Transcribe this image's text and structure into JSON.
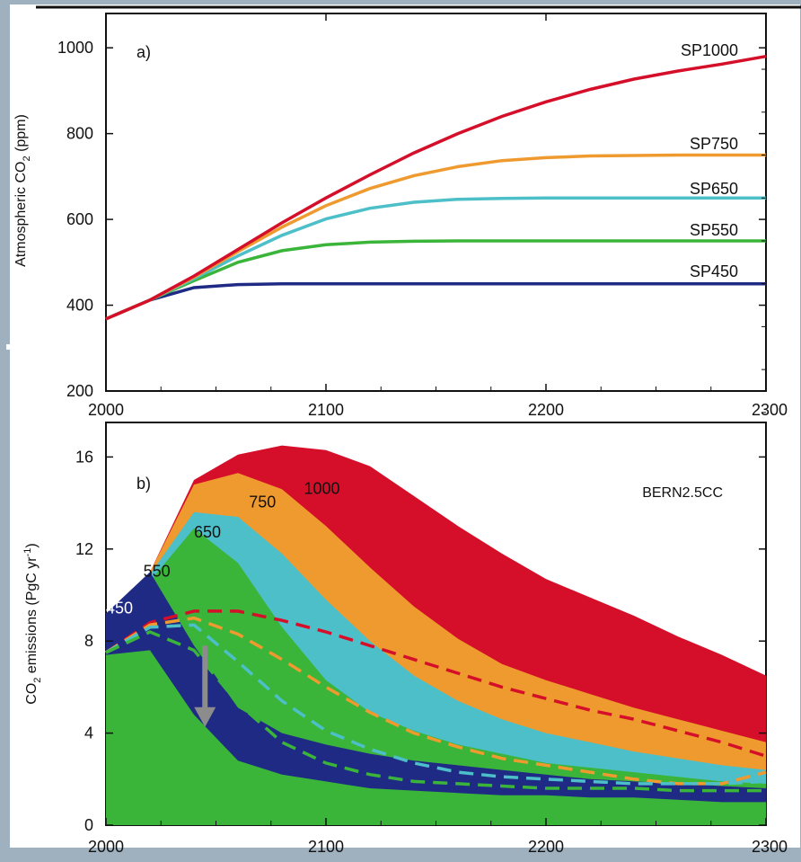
{
  "colors": {
    "background": "#9fb0bf",
    "panel": "#ffffff",
    "frame": "#111111",
    "sp1000": "#d50f2a",
    "sp750": "#ef9a2f",
    "sp650": "#4dbfc9",
    "sp550": "#3ab53a",
    "sp450": "#1f2a84",
    "arrow": "#8c8c8c"
  },
  "chart_data": [
    {
      "type": "line",
      "panel_label": "a)",
      "xlabel": "",
      "ylabel": "Atmospheric CO2 (ppm)",
      "xlim": [
        2000,
        2300
      ],
      "ylim": [
        200,
        1080
      ],
      "xticks": [
        2000,
        2100,
        2200,
        2300
      ],
      "yticks": [
        200,
        400,
        600,
        800,
        1000
      ],
      "grid": false,
      "x": [
        2000,
        2020,
        2040,
        2060,
        2080,
        2100,
        2120,
        2140,
        2160,
        2180,
        2200,
        2220,
        2240,
        2260,
        2280,
        2300
      ],
      "series": [
        {
          "name": "SP1000",
          "color": "#d50f2a",
          "values": [
            368,
            412,
            468,
            530,
            592,
            650,
            704,
            755,
            800,
            840,
            874,
            903,
            927,
            946,
            962,
            980
          ]
        },
        {
          "name": "SP750",
          "color": "#ef9a2f",
          "values": [
            368,
            412,
            465,
            525,
            582,
            632,
            672,
            702,
            723,
            737,
            744,
            748,
            749,
            750,
            750,
            750
          ]
        },
        {
          "name": "SP650",
          "color": "#4dbfc9",
          "values": [
            368,
            412,
            462,
            515,
            563,
            601,
            626,
            640,
            647,
            649,
            650,
            650,
            650,
            650,
            650,
            650
          ]
        },
        {
          "name": "SP550",
          "color": "#3ab53a",
          "values": [
            368,
            412,
            457,
            500,
            527,
            541,
            547,
            549,
            550,
            550,
            550,
            550,
            550,
            550,
            550,
            550
          ]
        },
        {
          "name": "SP450",
          "color": "#1f2a84",
          "values": [
            368,
            412,
            441,
            448,
            450,
            450,
            450,
            450,
            450,
            450,
            450,
            450,
            450,
            450,
            450,
            450
          ]
        }
      ]
    },
    {
      "type": "area",
      "panel_label": "b)",
      "model_label": "BERN2.5CC",
      "xlabel": "",
      "ylabel": "CO2 emissions (PgC yr-1)",
      "xlim": [
        2000,
        2300
      ],
      "ylim": [
        0,
        17.5
      ],
      "xticks": [
        2000,
        2100,
        2200,
        2300
      ],
      "yticks": [
        0,
        4,
        8,
        12,
        16
      ],
      "grid": false,
      "x": [
        2000,
        2020,
        2040,
        2060,
        2080,
        2100,
        2120,
        2140,
        2160,
        2180,
        2200,
        2220,
        2240,
        2260,
        2280,
        2300
      ],
      "bands": [
        {
          "name": "1000",
          "color": "#d50f2a",
          "upper": [
            7.6,
            11.0,
            15.0,
            16.1,
            16.5,
            16.3,
            15.6,
            14.3,
            13.0,
            11.8,
            10.7,
            9.9,
            9.1,
            8.2,
            7.4,
            6.5
          ]
        },
        {
          "name": "750",
          "color": "#ef9a2f",
          "upper": [
            7.6,
            11.0,
            14.8,
            15.3,
            14.6,
            13.0,
            11.2,
            9.5,
            8.1,
            7.0,
            6.3,
            5.7,
            5.1,
            4.6,
            4.1,
            3.6
          ]
        },
        {
          "name": "650",
          "color": "#4dbfc9",
          "upper": [
            7.6,
            10.9,
            13.6,
            13.4,
            11.8,
            9.8,
            8.0,
            6.5,
            5.4,
            4.6,
            4.0,
            3.6,
            3.2,
            2.9,
            2.6,
            2.4
          ]
        },
        {
          "name": "550",
          "color": "#3ab53a",
          "upper": [
            7.6,
            10.6,
            12.9,
            11.4,
            8.6,
            6.3,
            4.9,
            4.1,
            3.5,
            3.1,
            2.7,
            2.5,
            2.3,
            2.1,
            1.9,
            1.8
          ]
        },
        {
          "name": "450",
          "color": "#1f2a84",
          "upper": [
            9.2,
            11.0,
            7.8,
            5.1,
            4.0,
            3.5,
            3.1,
            2.8,
            2.6,
            2.4,
            2.2,
            2.0,
            1.9,
            1.8,
            1.7,
            1.6
          ],
          "lower": [
            7.4,
            7.6,
            4.8,
            2.8,
            2.2,
            1.9,
            1.6,
            1.5,
            1.4,
            1.3,
            1.3,
            1.2,
            1.2,
            1.1,
            1.0,
            1.0
          ]
        }
      ],
      "dashed_series": [
        {
          "color": "#d50f2a",
          "values": [
            7.5,
            8.8,
            9.3,
            9.3,
            8.9,
            8.4,
            7.8,
            7.2,
            6.6,
            6.0,
            5.5,
            5.0,
            4.6,
            4.1,
            3.6,
            3.0
          ]
        },
        {
          "color": "#ef9a2f",
          "values": [
            7.5,
            8.7,
            9.0,
            8.3,
            7.2,
            6.0,
            4.9,
            4.0,
            3.4,
            2.9,
            2.6,
            2.3,
            2.0,
            1.8,
            1.8,
            2.3
          ]
        },
        {
          "color": "#4dbfc9",
          "values": [
            7.5,
            8.6,
            8.7,
            7.1,
            5.4,
            4.1,
            3.3,
            2.7,
            2.3,
            2.1,
            2.0,
            1.9,
            1.8,
            1.8,
            1.8,
            1.9
          ]
        },
        {
          "color": "#3ab53a",
          "values": [
            7.5,
            8.4,
            7.6,
            5.3,
            3.6,
            2.7,
            2.2,
            1.9,
            1.8,
            1.7,
            1.6,
            1.6,
            1.6,
            1.5,
            1.5,
            1.5
          ]
        }
      ],
      "arrow": {
        "x": 2045,
        "from": 7.8,
        "to": 4.5
      }
    }
  ]
}
